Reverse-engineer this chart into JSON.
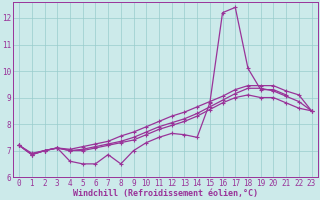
{
  "bg_color": "#cceaea",
  "grid_color": "#99cccc",
  "line_color": "#993399",
  "xlabel": "Windchill (Refroidissement éolien,°C)",
  "xlim": [
    -0.5,
    23.5
  ],
  "ylim": [
    6.0,
    12.6
  ],
  "yticks": [
    6,
    7,
    8,
    9,
    10,
    11,
    12
  ],
  "xticks": [
    0,
    1,
    2,
    3,
    4,
    5,
    6,
    7,
    8,
    9,
    10,
    11,
    12,
    13,
    14,
    15,
    16,
    17,
    18,
    19,
    20,
    21,
    22,
    23
  ],
  "series1_x": [
    0,
    1,
    2,
    3,
    4,
    5,
    6,
    7,
    8,
    9,
    10,
    11,
    12,
    13,
    14,
    15,
    16,
    17,
    18,
    19,
    20,
    21
  ],
  "series1_y": [
    7.2,
    6.9,
    7.0,
    7.1,
    6.6,
    6.5,
    6.5,
    6.85,
    6.5,
    7.0,
    7.3,
    7.5,
    7.65,
    7.6,
    7.5,
    8.8,
    12.2,
    12.4,
    10.1,
    9.3,
    9.3,
    9.1
  ],
  "series2_x": [
    0,
    1,
    2,
    3,
    4,
    5,
    6,
    7,
    8,
    9,
    10,
    11,
    12,
    13,
    14,
    15,
    16,
    17,
    18,
    19,
    20,
    21,
    22,
    23
  ],
  "series2_y": [
    7.2,
    6.85,
    7.0,
    7.1,
    7.05,
    7.15,
    7.25,
    7.35,
    7.55,
    7.7,
    7.9,
    8.1,
    8.3,
    8.45,
    8.65,
    8.85,
    9.05,
    9.3,
    9.45,
    9.45,
    9.45,
    9.25,
    9.1,
    8.5
  ],
  "series3_x": [
    0,
    1,
    2,
    3,
    4,
    5,
    6,
    7,
    8,
    9,
    10,
    11,
    12,
    13,
    14,
    15,
    16,
    17,
    18,
    19,
    20,
    21,
    22,
    23
  ],
  "series3_y": [
    7.2,
    6.85,
    7.0,
    7.1,
    7.0,
    7.05,
    7.15,
    7.25,
    7.35,
    7.5,
    7.7,
    7.9,
    8.05,
    8.2,
    8.4,
    8.65,
    8.9,
    9.15,
    9.35,
    9.35,
    9.25,
    9.05,
    8.85,
    8.5
  ],
  "series4_x": [
    0,
    1,
    2,
    3,
    4,
    5,
    6,
    7,
    8,
    9,
    10,
    11,
    12,
    13,
    14,
    15,
    16,
    17,
    18,
    19,
    20,
    21,
    22,
    23
  ],
  "series4_y": [
    7.2,
    6.85,
    7.0,
    7.1,
    7.0,
    7.0,
    7.1,
    7.2,
    7.3,
    7.4,
    7.6,
    7.8,
    7.95,
    8.1,
    8.3,
    8.55,
    8.8,
    9.0,
    9.1,
    9.0,
    9.0,
    8.8,
    8.6,
    8.5
  ],
  "tick_fontsize": 5.5,
  "xlabel_fontsize": 6.0,
  "linewidth": 0.9,
  "markersize": 3.5
}
